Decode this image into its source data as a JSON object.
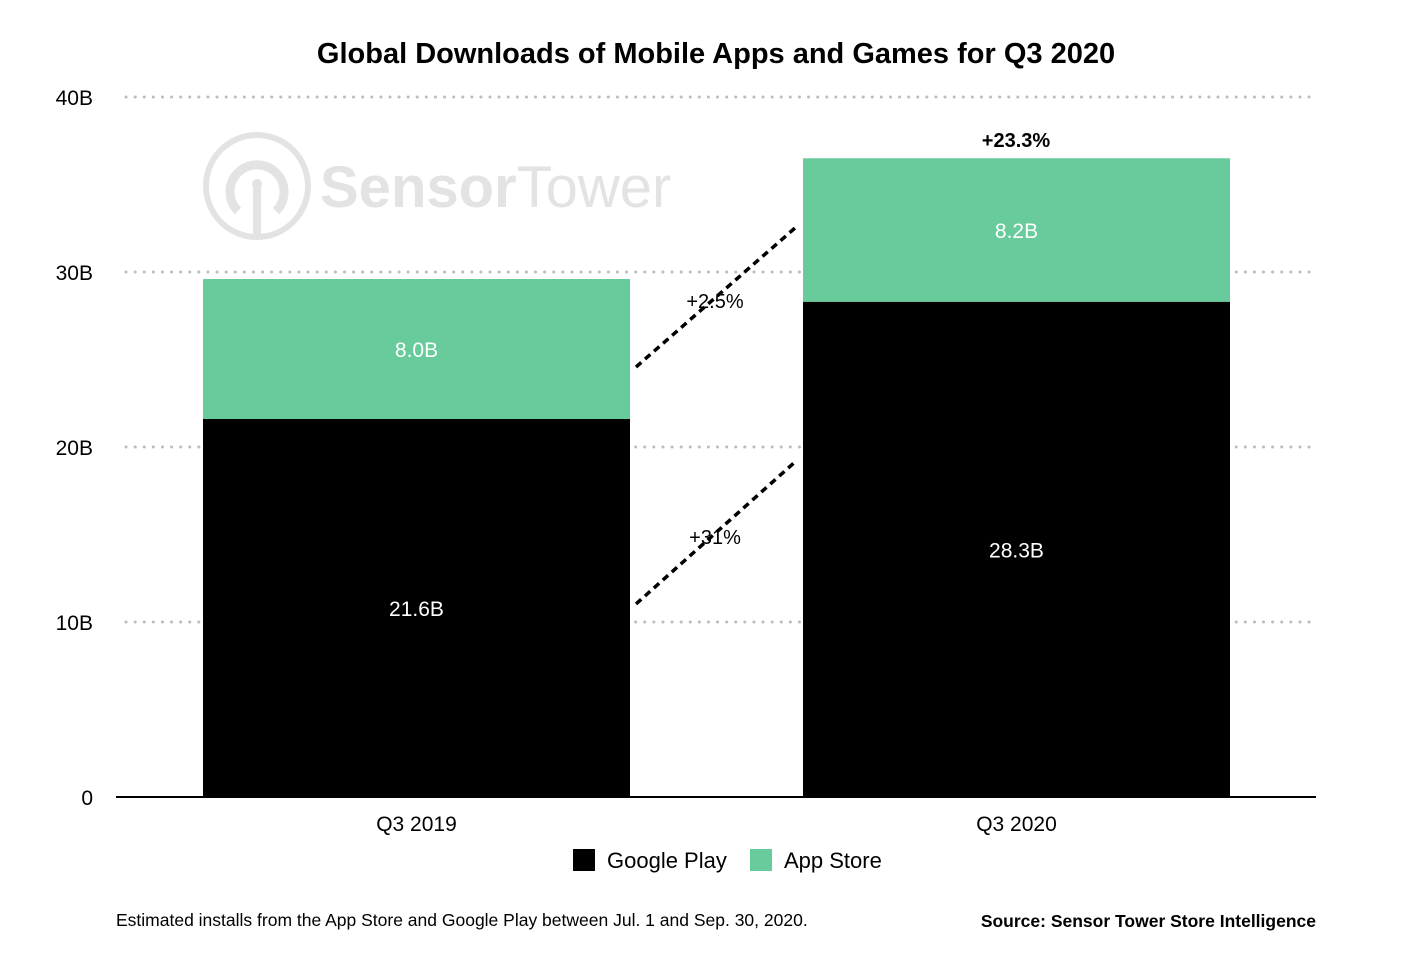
{
  "chart_data": {
    "type": "bar",
    "stacked": true,
    "title": "Global Downloads of Mobile Apps and Games for Q3 2020",
    "categories": [
      "Q3 2019",
      "Q3 2020"
    ],
    "series": [
      {
        "name": "Google Play",
        "values": [
          21.6,
          28.3
        ],
        "labels": [
          "21.6B",
          "28.3B"
        ],
        "color": "#000000",
        "label_color": "#ffffff"
      },
      {
        "name": "App Store",
        "values": [
          8.0,
          8.2
        ],
        "labels": [
          "8.0B",
          "8.2B"
        ],
        "color": "#68CB9B",
        "label_color": "#ffffff"
      }
    ],
    "yticks": [
      0,
      10,
      20,
      30,
      40
    ],
    "ytick_labels": [
      "0",
      "10B",
      "20B",
      "30B",
      "40B"
    ],
    "ylim": [
      0,
      40
    ],
    "grid": "dotted horizontal",
    "legend": "bottom-center",
    "annotations": {
      "total_change": "+23.3%",
      "app_store_change": "+2.5%",
      "google_play_change": "+31%"
    }
  },
  "watermark": "SensorTower",
  "footnote": "Estimated installs from the App Store and Google Play between Jul. 1 and Sep. 30, 2020.",
  "source": "Source: Sensor Tower Store Intelligence"
}
